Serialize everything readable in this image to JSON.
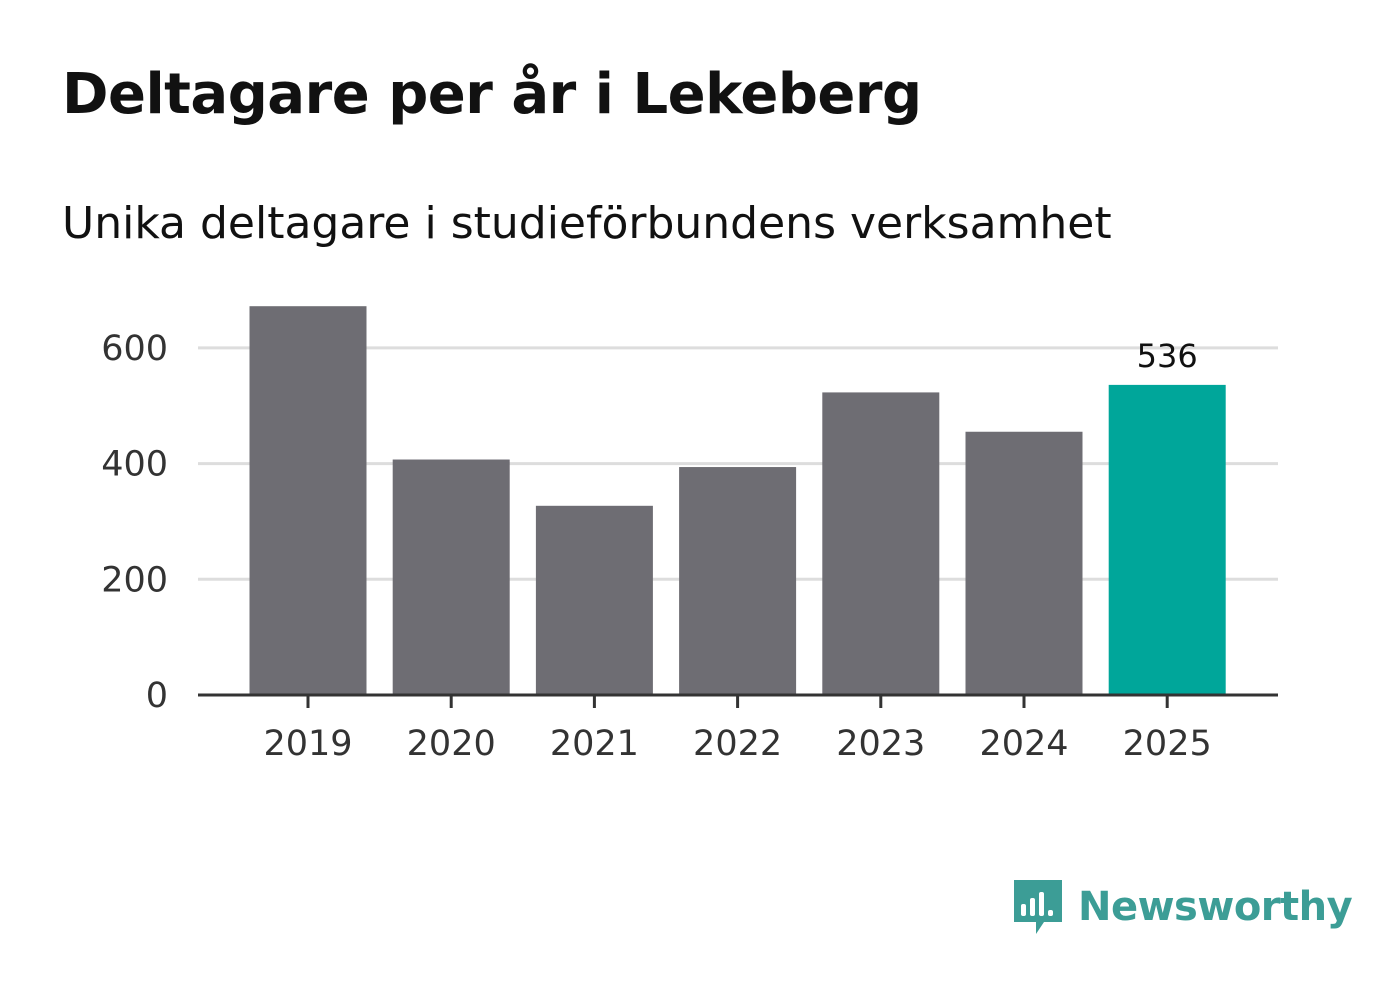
{
  "header": {
    "title": "Deltagare per år i Lekeberg",
    "subtitle": "Unika deltagare i studieförbundens verksamhet"
  },
  "chart_data": {
    "type": "bar",
    "title": "Deltagare per år i Lekeberg",
    "subtitle": "Unika deltagare i studieförbundens verksamhet",
    "categories": [
      "2019",
      "2020",
      "2021",
      "2022",
      "2023",
      "2024",
      "2025"
    ],
    "values": [
      672,
      407,
      327,
      394,
      523,
      455,
      536
    ],
    "highlight_index": 6,
    "data_labels": [
      {
        "index": 6,
        "text": "536"
      }
    ],
    "yticks": [
      0,
      200,
      400,
      600
    ],
    "ylim": [
      0,
      700
    ],
    "xlabel": "",
    "ylabel": "",
    "grid": true,
    "colors": {
      "bar": "#6e6d73",
      "highlight": "#00a69a",
      "grid": "#dddddd",
      "axis": "#333333"
    }
  },
  "branding": {
    "logo_text": "Newsworthy",
    "logo_icon": "newsworthy-chart-bubble-icon",
    "color": "#3c9d96"
  }
}
